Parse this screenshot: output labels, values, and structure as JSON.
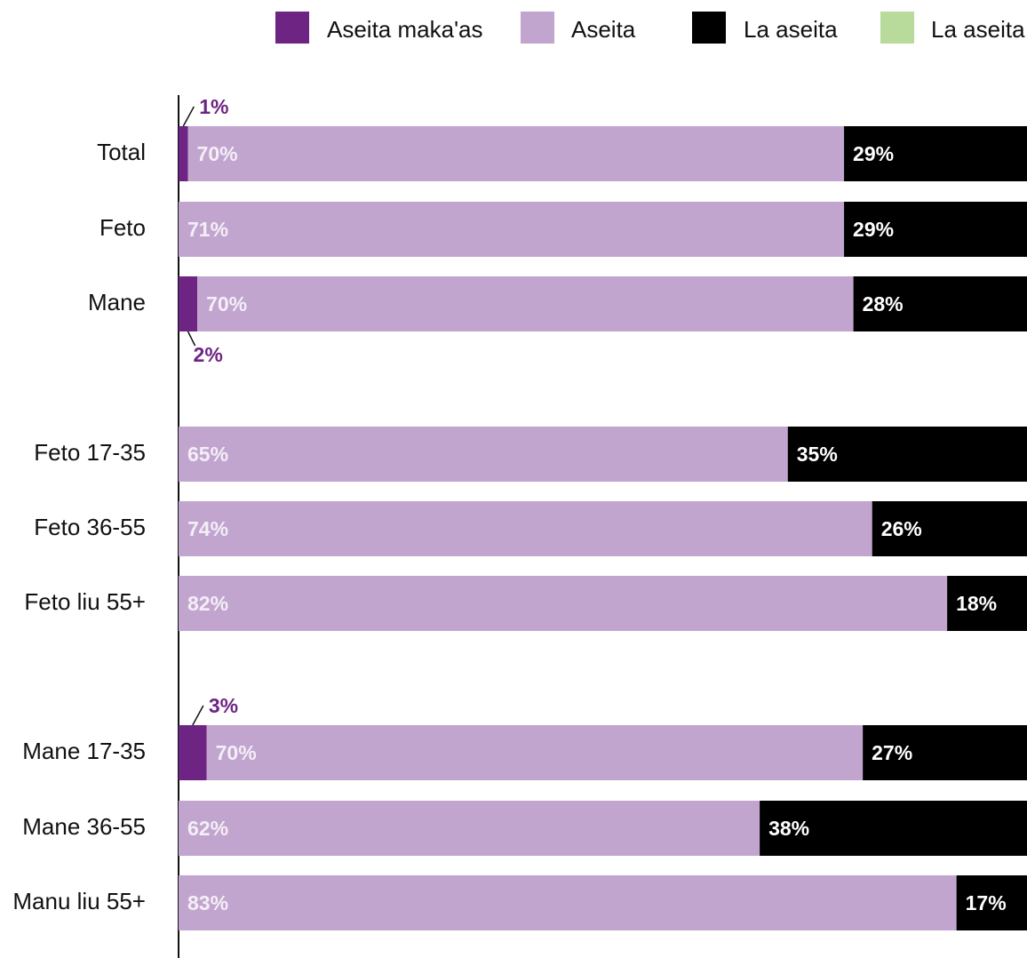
{
  "chart_data": {
    "type": "bar",
    "orientation": "horizontal",
    "stacked": true,
    "title": "",
    "xlabel": "",
    "ylabel": "",
    "xlim": [
      0,
      100
    ],
    "grid": false,
    "legend_position": "top-right",
    "categories": [
      "Total",
      "Feto",
      "Mane",
      "Feto 17-35",
      "Feto 36-55",
      "Feto liu 55+",
      "Mane 17-35",
      "Mane 36-55",
      "Manu liu 55+"
    ],
    "groups": [
      [
        0,
        1,
        2
      ],
      [
        3,
        4,
        5
      ],
      [
        6,
        7,
        8
      ]
    ],
    "series": [
      {
        "name": "Aseita maka'as",
        "color": "#6d2483",
        "values": [
          1,
          0,
          2,
          0,
          0,
          0,
          3,
          0,
          0
        ]
      },
      {
        "name": "Aseita",
        "color": "#c2a5cf",
        "values": [
          70,
          71,
          70,
          65,
          74,
          82,
          70,
          62,
          83
        ]
      },
      {
        "name": "La aseita",
        "color": "#000000",
        "values": [
          29,
          29,
          28,
          35,
          26,
          18,
          27,
          38,
          17
        ]
      },
      {
        "name": "La aseita",
        "color": "#b8da9a",
        "values": [
          0,
          0,
          0,
          0,
          0,
          0,
          0,
          0,
          0
        ]
      }
    ],
    "value_suffix": "%"
  }
}
